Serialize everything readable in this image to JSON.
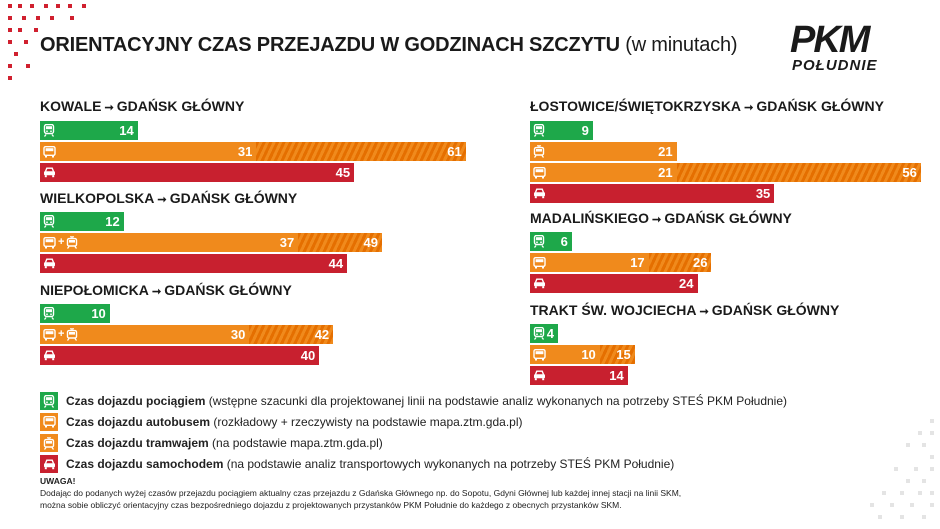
{
  "title": {
    "main": "ORIENTACYJNY CZAS PRZEJAZDU W GODZINACH SZCZYTU",
    "sub": "(w minutach)"
  },
  "logo": {
    "main": "PKM",
    "sub": "POŁUDNIE"
  },
  "colors": {
    "train": "#1ea84a",
    "bus": "#f08a1c",
    "tram": "#f08a1c",
    "car": "#c8202f"
  },
  "arrow": "➞",
  "chart_data": [
    {
      "type": "bar",
      "from": "KOWALE",
      "to": "GDAŃSK GŁÓWNY",
      "series": [
        {
          "mode": "train",
          "icons": [
            "train-icon"
          ],
          "values": [
            14
          ]
        },
        {
          "mode": "bus",
          "icons": [
            "bus-icon"
          ],
          "values": [
            31,
            61
          ]
        },
        {
          "mode": "car",
          "icons": [
            "car-icon"
          ],
          "values": [
            45
          ]
        }
      ]
    },
    {
      "type": "bar",
      "from": "WIELKOPOLSKA",
      "to": "GDAŃSK GŁÓWNY",
      "series": [
        {
          "mode": "train",
          "icons": [
            "train-icon"
          ],
          "values": [
            12
          ]
        },
        {
          "mode": "bus+tram",
          "icons": [
            "bus-icon",
            "plus",
            "tram-icon"
          ],
          "values": [
            37,
            49
          ]
        },
        {
          "mode": "car",
          "icons": [
            "car-icon"
          ],
          "values": [
            44
          ]
        }
      ]
    },
    {
      "type": "bar",
      "from": "NIEPOŁOMICKA",
      "to": "GDAŃSK GŁÓWNY",
      "series": [
        {
          "mode": "train",
          "icons": [
            "train-icon"
          ],
          "values": [
            10
          ]
        },
        {
          "mode": "bus+tram",
          "icons": [
            "bus-icon",
            "plus",
            "tram-icon"
          ],
          "values": [
            30,
            42
          ]
        },
        {
          "mode": "car",
          "icons": [
            "car-icon"
          ],
          "values": [
            40
          ]
        }
      ]
    },
    {
      "type": "bar",
      "from": "ŁOSTOWICE/ŚWIĘTOKRZYSKA",
      "to": "GDAŃSK GŁÓWNY",
      "series": [
        {
          "mode": "train",
          "icons": [
            "train-icon"
          ],
          "values": [
            9
          ]
        },
        {
          "mode": "tram",
          "icons": [
            "tram-icon"
          ],
          "values": [
            21
          ]
        },
        {
          "mode": "bus",
          "icons": [
            "bus-icon"
          ],
          "values": [
            21,
            56
          ]
        },
        {
          "mode": "car",
          "icons": [
            "car-icon"
          ],
          "values": [
            35
          ]
        }
      ]
    },
    {
      "type": "bar",
      "from": "MADALIŃSKIEGO",
      "to": "GDAŃSK GŁÓWNY",
      "series": [
        {
          "mode": "train",
          "icons": [
            "train-icon"
          ],
          "values": [
            6
          ]
        },
        {
          "mode": "bus",
          "icons": [
            "bus-icon"
          ],
          "values": [
            17,
            26
          ]
        },
        {
          "mode": "car",
          "icons": [
            "car-icon"
          ],
          "values": [
            24
          ]
        }
      ]
    },
    {
      "type": "bar",
      "from": "TRAKT ŚW. WOJCIECHA",
      "to": "GDAŃSK GŁÓWNY",
      "series": [
        {
          "mode": "train",
          "icons": [
            "train-icon"
          ],
          "values": [
            4
          ]
        },
        {
          "mode": "bus",
          "icons": [
            "bus-icon"
          ],
          "values": [
            10,
            15
          ]
        },
        {
          "mode": "car",
          "icons": [
            "car-icon"
          ],
          "values": [
            14
          ]
        }
      ]
    }
  ],
  "legend": [
    {
      "icon": "train-icon",
      "color": "#1ea84a",
      "bold": "Czas dojazdu pociągiem",
      "text": " (wstępne szacunki dla projektowanej linii na podstawie analiz wykonanych na potrzeby STEŚ PKM Południe)"
    },
    {
      "icon": "bus-icon",
      "color": "#f08a1c",
      "bold": "Czas dojazdu autobusem",
      "text": " (rozkładowy + rzeczywisty na podstawie mapa.ztm.gda.pl)"
    },
    {
      "icon": "tram-icon",
      "color": "#f08a1c",
      "bold": "Czas dojazdu tramwajem",
      "text": " (na podstawie mapa.ztm.gda.pl)"
    },
    {
      "icon": "car-icon",
      "color": "#c8202f",
      "bold": "Czas dojazdu samochodem",
      "text": " (na podstawie analiz transportowych wykonanych na potrzeby STEŚ PKM Południe)"
    }
  ],
  "note": {
    "head": "UWAGA!",
    "line1": "Dodając do podanych wyżej czasów przejazdu pociągiem aktualny czas przejazdu z Gdańska Głównego np. do Sopotu, Gdyni Głównej lub każdej innej stacji na linii SKM,",
    "line2": "można sobie obliczyć orientacyjny czas bezpośredniego dojazdu z projektowanych przystanków PKM Południe do każdego z obecnych przystanków SKM."
  }
}
